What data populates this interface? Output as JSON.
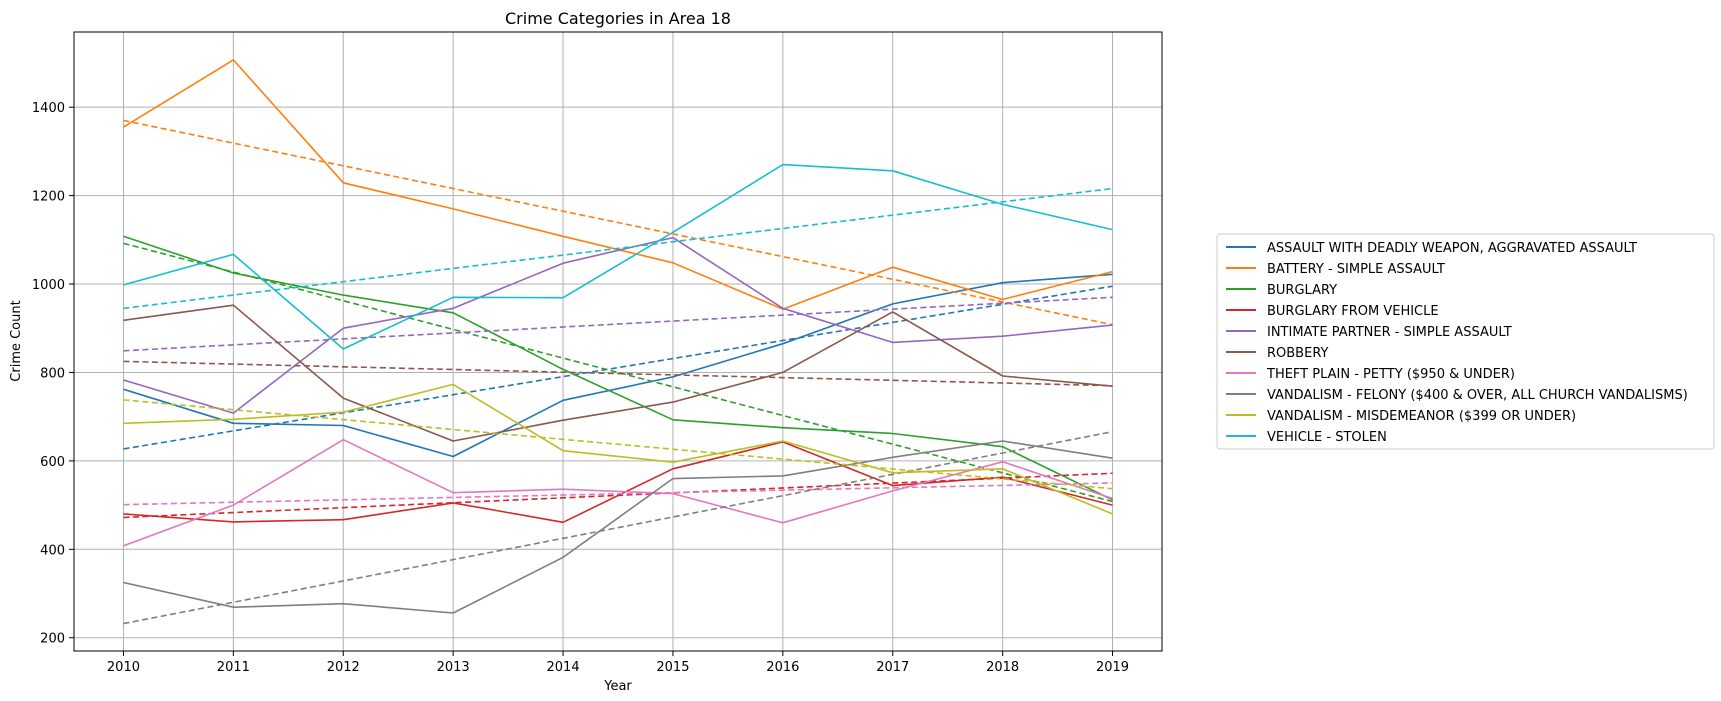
{
  "chart_data": {
    "type": "line",
    "title": "Crime Categories in Area 18",
    "xlabel": "Year",
    "ylabel": "Crime Count",
    "x": [
      2010,
      2011,
      2012,
      2013,
      2014,
      2015,
      2016,
      2017,
      2018,
      2019
    ],
    "xticks": [
      "2010",
      "2011",
      "2012",
      "2013",
      "2014",
      "2015",
      "2016",
      "2017",
      "2018",
      "2019"
    ],
    "yticks": [
      "200",
      "400",
      "600",
      "800",
      "1000",
      "1200",
      "1400"
    ],
    "xlim": [
      2009.55,
      2019.45
    ],
    "ylim": [
      170,
      1570
    ],
    "grid": true,
    "legend_position": "right",
    "trend_lines": "dashed",
    "series": [
      {
        "name": "ASSAULT WITH DEADLY WEAPON, AGGRAVATED ASSAULT",
        "color": "#1f77b4",
        "values": [
          762,
          685,
          680,
          610,
          737,
          790,
          865,
          955,
          1003,
          1022
        ],
        "trend": [
          627,
          995
        ]
      },
      {
        "name": "BATTERY - SIMPLE ASSAULT",
        "color": "#ff7f0e",
        "values": [
          1355,
          1507,
          1229,
          1170,
          1108,
          1048,
          943,
          1038,
          965,
          1028
        ],
        "trend": [
          1370,
          908
        ]
      },
      {
        "name": "BURGLARY",
        "color": "#2ca02c",
        "values": [
          1108,
          1025,
          975,
          935,
          807,
          693,
          675,
          662,
          632,
          512
        ],
        "trend": [
          1092,
          508
        ]
      },
      {
        "name": "BURGLARY FROM VEHICLE",
        "color": "#d62728",
        "values": [
          480,
          462,
          467,
          505,
          461,
          582,
          643,
          544,
          563,
          500
        ],
        "trend": [
          472,
          572
        ]
      },
      {
        "name": "INTIMATE PARTNER - SIMPLE ASSAULT",
        "color": "#9467bd",
        "values": [
          783,
          708,
          900,
          945,
          1047,
          1105,
          945,
          868,
          882,
          907
        ],
        "trend": [
          849,
          970
        ]
      },
      {
        "name": "ROBBERY",
        "color": "#8c564b",
        "values": [
          918,
          952,
          742,
          645,
          692,
          733,
          800,
          937,
          792,
          769
        ],
        "trend": [
          825,
          770
        ]
      },
      {
        "name": "THEFT PLAIN - PETTY ($950 & UNDER)",
        "color": "#e377c2",
        "values": [
          408,
          500,
          648,
          528,
          536,
          526,
          460,
          532,
          598,
          515
        ],
        "trend": [
          501,
          550
        ]
      },
      {
        "name": "VANDALISM - FELONY ($400 & OVER, ALL CHURCH VANDALISMS)",
        "color": "#7f7f7f",
        "values": [
          325,
          269,
          277,
          256,
          382,
          560,
          566,
          608,
          645,
          606
        ],
        "trend": [
          232,
          666
        ]
      },
      {
        "name": "VANDALISM - MISDEMEANOR ($399 OR UNDER)",
        "color": "#bcbd22",
        "values": [
          685,
          694,
          710,
          773,
          623,
          597,
          645,
          573,
          582,
          480
        ],
        "trend": [
          738,
          537
        ]
      },
      {
        "name": "VEHICLE - STOLEN",
        "color": "#17becf",
        "values": [
          998,
          1067,
          853,
          970,
          969,
          1117,
          1270,
          1256,
          1180,
          1123
        ],
        "trend": [
          945,
          1216
        ]
      }
    ]
  }
}
